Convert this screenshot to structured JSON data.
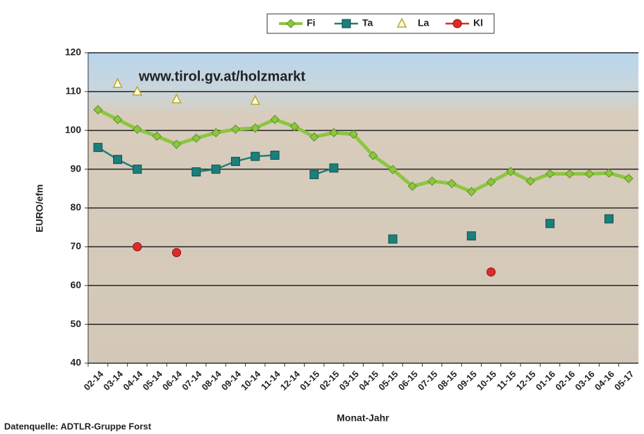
{
  "chart_data": {
    "type": "line",
    "annotation": "www.tirol.gv.at/holzmarkt",
    "x_label": "Monat-Jahr",
    "y_label": "EURO/efm",
    "source": "Datenquelle: ADTLR-Gruppe Forst",
    "categories": [
      "02-14",
      "03-14",
      "04-14",
      "05-14",
      "06-14",
      "07-14",
      "08-14",
      "09-14",
      "10-14",
      "11-14",
      "12-14",
      "01-15",
      "02-15",
      "03-15",
      "04-15",
      "05-15",
      "06-15",
      "07-15",
      "08-15",
      "09-15",
      "10-15",
      "11-15",
      "12-15",
      "01-16",
      "02-16",
      "03-16",
      "04-16",
      "05-17"
    ],
    "series": [
      {
        "name": "Fi",
        "color": "#8cc63e",
        "marker": "diamond",
        "line": true,
        "values": [
          105.3,
          102.8,
          100.3,
          98.5,
          96.4,
          98,
          99.4,
          100.3,
          100.6,
          102.8,
          101,
          98.3,
          99.4,
          99,
          93.5,
          89.9,
          85.6,
          86.9,
          86.3,
          84.2,
          86.7,
          89.4,
          86.9,
          88.8,
          88.8,
          88.8,
          89,
          87.6
        ]
      },
      {
        "name": "Ta",
        "color": "#1b7f7c",
        "marker": "square",
        "line": true,
        "values": [
          95.6,
          92.5,
          90,
          null,
          null,
          89.3,
          90,
          92,
          93.3,
          93.6,
          null,
          88.6,
          90.3,
          null,
          null,
          72,
          null,
          null,
          null,
          72.8,
          null,
          null,
          null,
          76,
          null,
          null,
          77.2,
          null
        ]
      },
      {
        "name": "La",
        "color": "#e8d84a",
        "marker": "triangle",
        "line": false,
        "values": [
          null,
          112,
          110,
          null,
          108,
          null,
          null,
          null,
          107.6,
          null,
          null,
          null,
          null,
          null,
          null,
          null,
          null,
          null,
          null,
          null,
          null,
          null,
          null,
          null,
          null,
          null,
          null,
          null
        ]
      },
      {
        "name": "Kl",
        "color": "#e02a2a",
        "marker": "circle",
        "line": true,
        "values": [
          null,
          null,
          70,
          null,
          68.5,
          null,
          null,
          null,
          null,
          null,
          null,
          null,
          null,
          null,
          null,
          null,
          null,
          null,
          null,
          null,
          63.5,
          null,
          null,
          null,
          null,
          null,
          null,
          null
        ]
      }
    ],
    "ylim": [
      40,
      120
    ],
    "yticks": [
      40,
      50,
      60,
      70,
      80,
      90,
      100,
      110,
      120
    ],
    "grid": true
  }
}
